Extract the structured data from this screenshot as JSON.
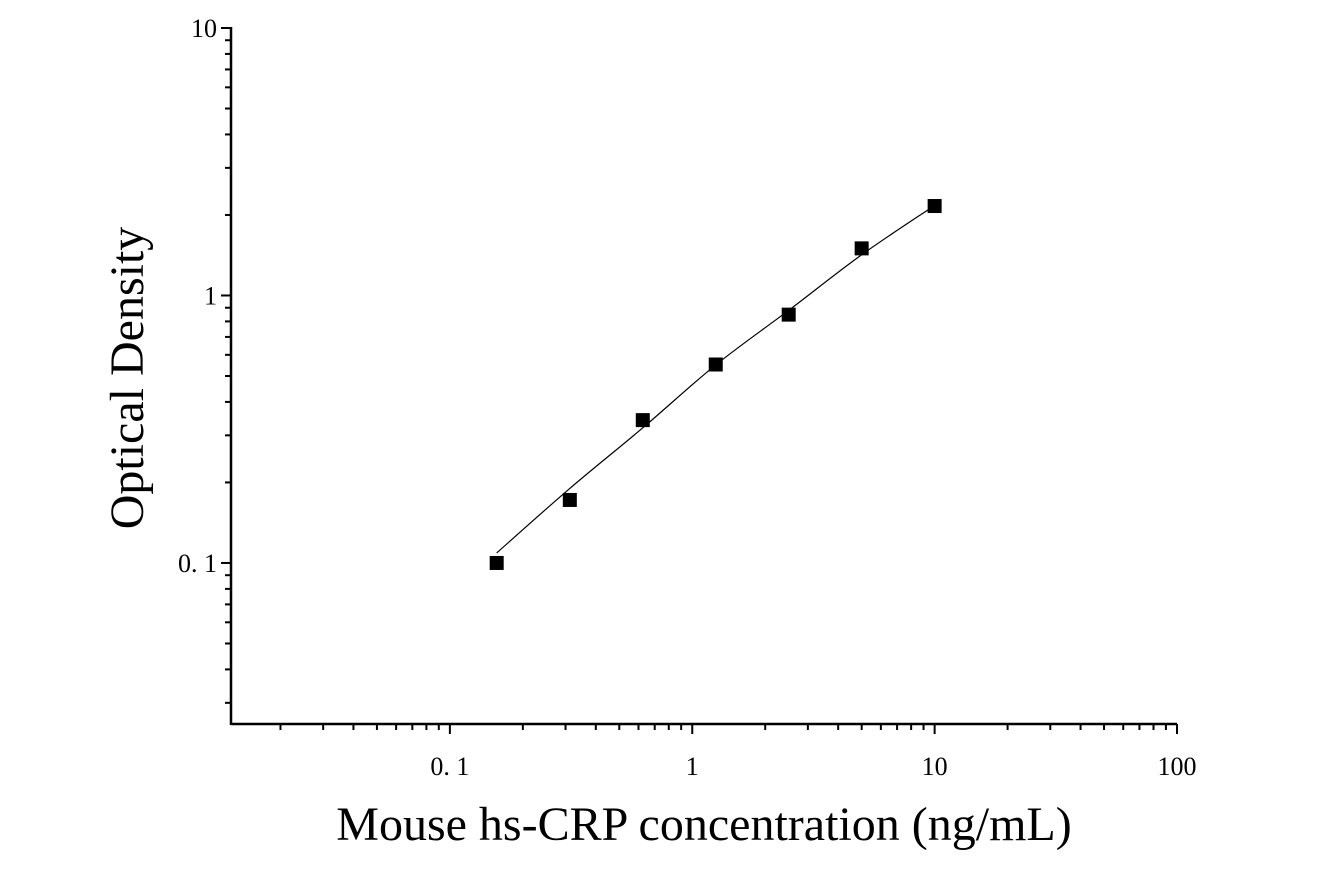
{
  "chart_data": {
    "type": "scatter",
    "xlabel": "Mouse hs-CRP concentration (ng/mL)",
    "ylabel": "Optical Density",
    "x_scale": "log",
    "y_scale": "log",
    "xlim": [
      0.0125,
      100
    ],
    "ylim": [
      0.025,
      10
    ],
    "x_ticks": [
      {
        "value": 0.1,
        "label": "0. 1"
      },
      {
        "value": 1,
        "label": "1"
      },
      {
        "value": 10,
        "label": "10"
      },
      {
        "value": 100,
        "label": "100"
      }
    ],
    "y_ticks": [
      {
        "value": 0.1,
        "label": "0. 1"
      },
      {
        "value": 1,
        "label": "1"
      },
      {
        "value": 10,
        "label": "10"
      }
    ],
    "grid": false,
    "legend": "none",
    "series": [
      {
        "marker": "square",
        "color": "#000000",
        "points": [
          {
            "x": 0.156,
            "y": 0.1
          },
          {
            "x": 0.3125,
            "y": 0.172
          },
          {
            "x": 0.625,
            "y": 0.342
          },
          {
            "x": 1.25,
            "y": 0.552
          },
          {
            "x": 2.5,
            "y": 0.848
          },
          {
            "x": 5,
            "y": 1.5
          },
          {
            "x": 10,
            "y": 2.16
          }
        ]
      }
    ],
    "fit_curve": {
      "color": "#000000",
      "points": [
        {
          "x": 0.156,
          "y": 0.109
        },
        {
          "x": 0.3125,
          "y": 0.19
        },
        {
          "x": 0.625,
          "y": 0.32
        },
        {
          "x": 1.25,
          "y": 0.55
        },
        {
          "x": 2.5,
          "y": 0.88
        },
        {
          "x": 5,
          "y": 1.42
        },
        {
          "x": 10,
          "y": 2.17
        }
      ]
    }
  }
}
